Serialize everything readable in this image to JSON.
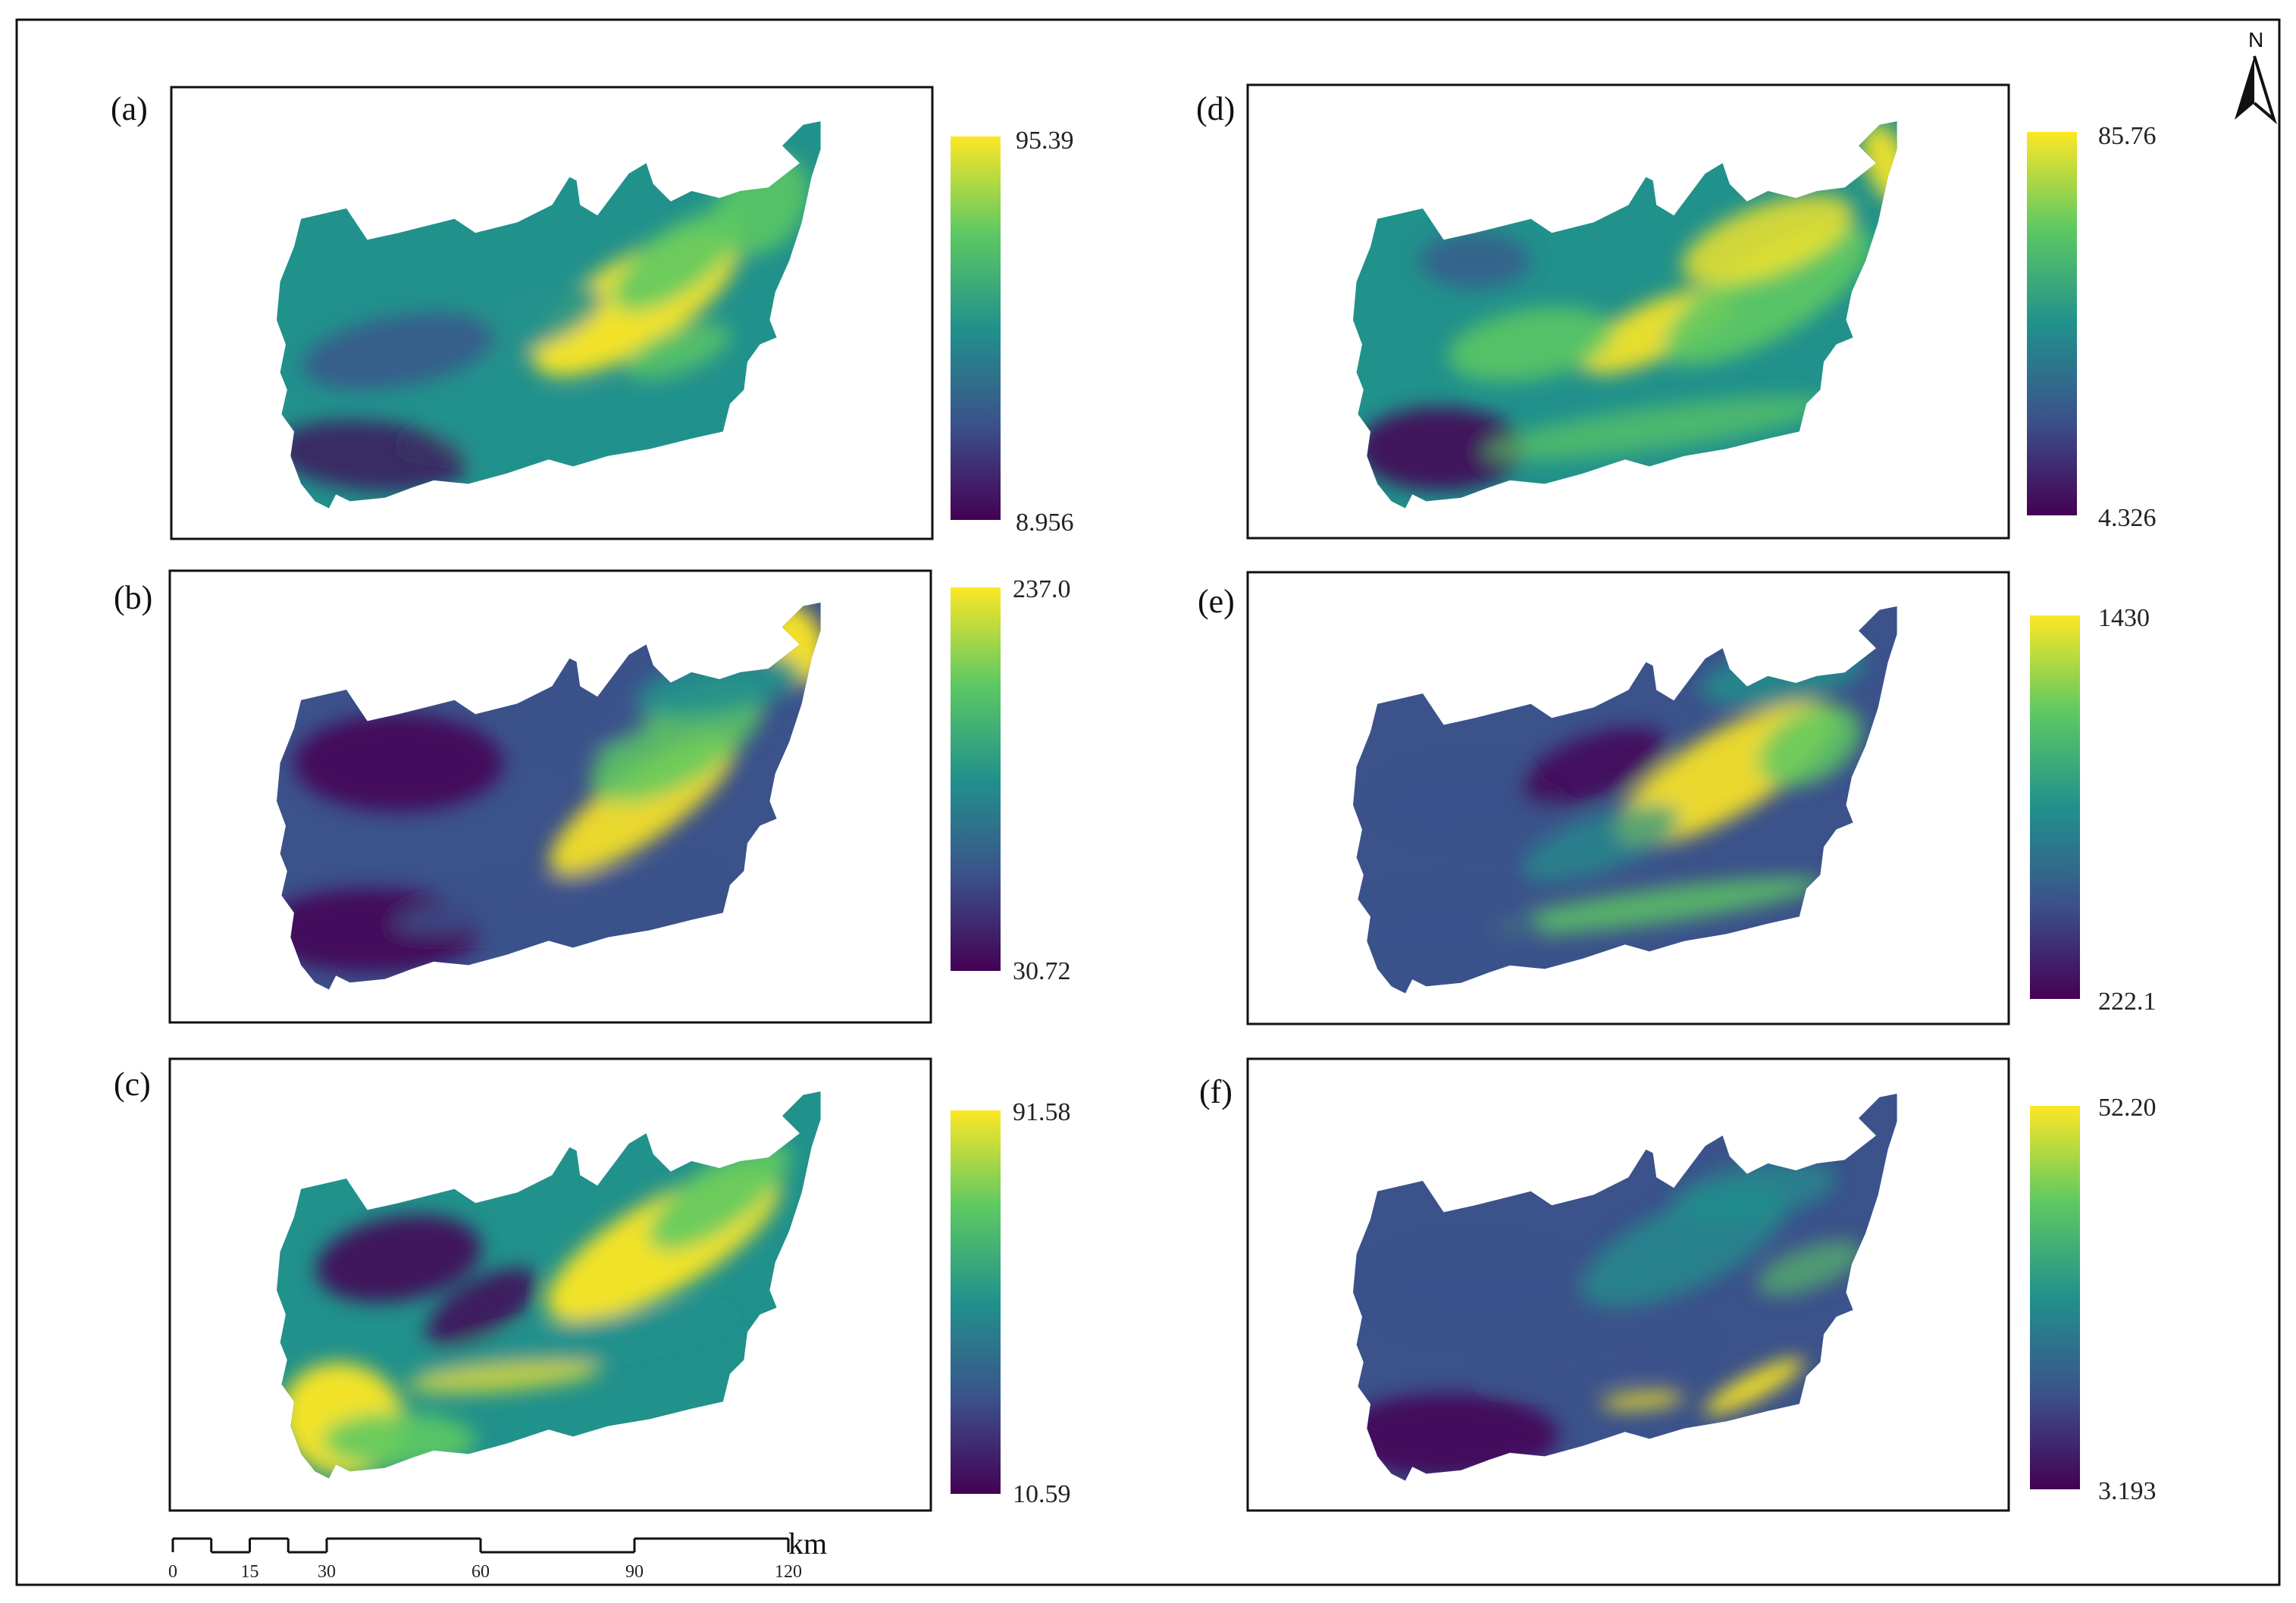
{
  "colors": {
    "ramp": [
      "#440154",
      "#3b528b",
      "#21918c",
      "#5ec962",
      "#fde725"
    ],
    "frame": "#111111"
  },
  "north_arrow": {
    "label": "N",
    "icon": "north-arrow-icon"
  },
  "scale_bar": {
    "unit": "km",
    "ticks": [
      "0",
      "15",
      "30",
      "60",
      "90",
      "120"
    ],
    "fine_divisions_km": [
      0,
      7.5,
      15,
      22.5,
      30,
      60,
      90,
      120
    ]
  },
  "panels": [
    {
      "id": "a",
      "label": "(a)",
      "legend_max": "95.39",
      "legend_min": "8.956"
    },
    {
      "id": "b",
      "label": "(b)",
      "legend_max": "237.0",
      "legend_min": "30.72"
    },
    {
      "id": "c",
      "label": "(c)",
      "legend_max": "91.58",
      "legend_min": "10.59"
    },
    {
      "id": "d",
      "label": "(d)",
      "legend_max": "85.76",
      "legend_min": "4.326"
    },
    {
      "id": "e",
      "label": "(e)",
      "legend_max": "1430",
      "legend_min": "222.1"
    },
    {
      "id": "f",
      "label": "(f)",
      "legend_max": "52.20",
      "legend_min": "3.193"
    }
  ]
}
